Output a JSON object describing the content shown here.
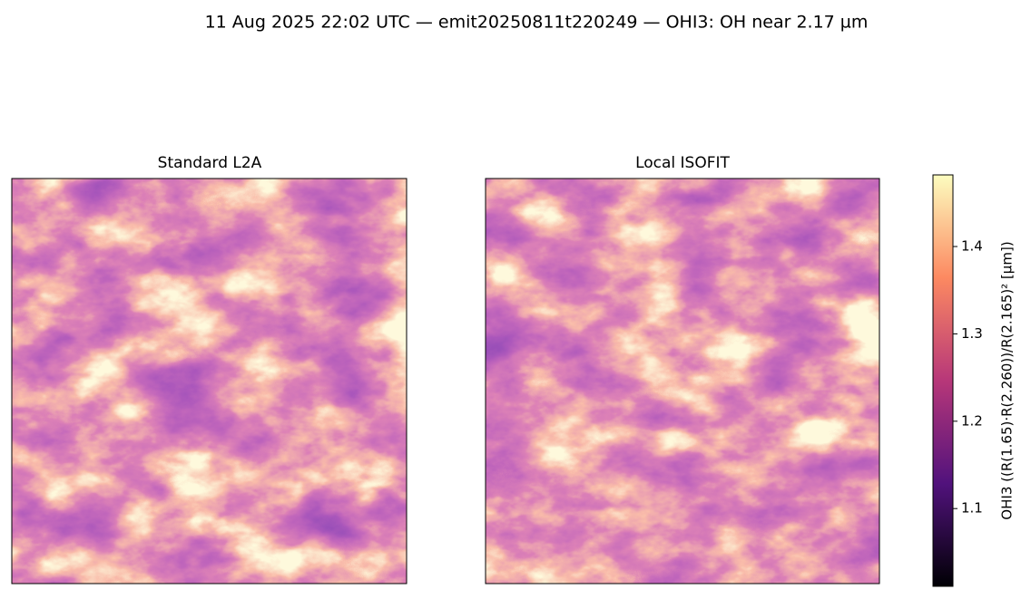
{
  "chart_data": {
    "type": "heatmap",
    "title": "11 Aug 2025 22:02 UTC — emit20250811t220249 — OHI3: OH near 2.17 µm",
    "subplot_titles": [
      "Standard L2A",
      "Local ISOFIT"
    ],
    "colormap": "magma",
    "colorbar_label": "OHI3  ((R(1.65)·R(2.260))/R(2.165)²  [µm])",
    "clim": [
      1.011,
      1.482
    ],
    "cticks": [
      1.1,
      1.2,
      1.3,
      1.4
    ]
  }
}
